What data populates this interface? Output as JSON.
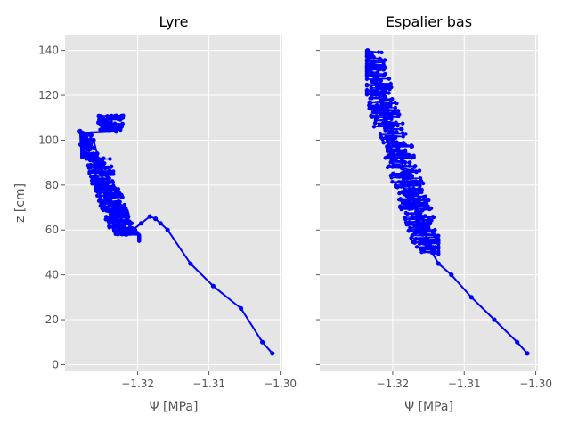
{
  "chart_data": [
    {
      "type": "line",
      "title": "Lyre",
      "xlabel": "Ψ [MPa]",
      "ylabel": "z [cm]",
      "xlim": [
        -1.3302,
        -1.2997
      ],
      "ylim": [
        -3,
        147
      ],
      "xticks": [
        -1.32,
        -1.31,
        -1.3
      ],
      "xtick_labels": [
        "−1.32",
        "−1.31",
        "−1.30"
      ],
      "yticks": [
        0,
        20,
        40,
        60,
        80,
        100,
        120,
        140
      ],
      "ytick_labels": [
        "0",
        "20",
        "40",
        "60",
        "80",
        "100",
        "120",
        "140"
      ],
      "grid": true,
      "series": [
        {
          "color": "#0000ff",
          "x": [
            -1.3011,
            -1.3025,
            -1.3055,
            -1.3094,
            -1.3126,
            -1.3158,
            -1.3168,
            -1.3175,
            -1.3183,
            -1.3195,
            -1.3207,
            -1.3216,
            -1.3224,
            -1.323,
            -1.3234,
            -1.3238,
            -1.3242,
            -1.3249,
            -1.3253,
            -1.3257,
            -1.3262,
            -1.3267,
            -1.3272,
            -1.3276,
            -1.328,
            -1.3281
          ],
          "y": [
            5,
            10,
            25,
            35,
            45,
            60,
            63,
            65,
            66,
            63,
            60,
            58,
            62,
            66,
            70,
            74,
            78,
            82,
            88,
            94,
            100,
            96,
            92,
            94,
            98,
            104
          ]
        }
      ],
      "cloud": {
        "x_range": [
          -1.3278,
          -1.3198
        ],
        "y_range": [
          55,
          111
        ]
      }
    },
    {
      "type": "line",
      "title": "Espalier bas",
      "xlabel": "Ψ [MPa]",
      "ylabel": "",
      "xlim": [
        -1.3302,
        -1.2997
      ],
      "ylim": [
        -3,
        147
      ],
      "xticks": [
        -1.32,
        -1.31,
        -1.3
      ],
      "xtick_labels": [
        "−1.32",
        "−1.31",
        "−1.30"
      ],
      "yticks": [
        0,
        20,
        40,
        60,
        80,
        100,
        120,
        140
      ],
      "ytick_labels": [],
      "grid": true,
      "series": [
        {
          "color": "#0000ff",
          "x": [
            -1.3012,
            -1.3026,
            -1.3058,
            -1.309,
            -1.3118,
            -1.3136,
            -1.3145,
            -1.3152,
            -1.316,
            -1.3168,
            -1.3176,
            -1.3184,
            -1.3193,
            -1.3202,
            -1.3212,
            -1.3222,
            -1.323,
            -1.3235
          ],
          "y": [
            5,
            10,
            20,
            30,
            40,
            45,
            50,
            56,
            62,
            70,
            78,
            86,
            96,
            104,
            112,
            122,
            132,
            140
          ]
        }
      ],
      "cloud": {
        "x_range": [
          -1.3236,
          -1.3136
        ],
        "y_range": [
          49,
          140
        ]
      }
    }
  ]
}
